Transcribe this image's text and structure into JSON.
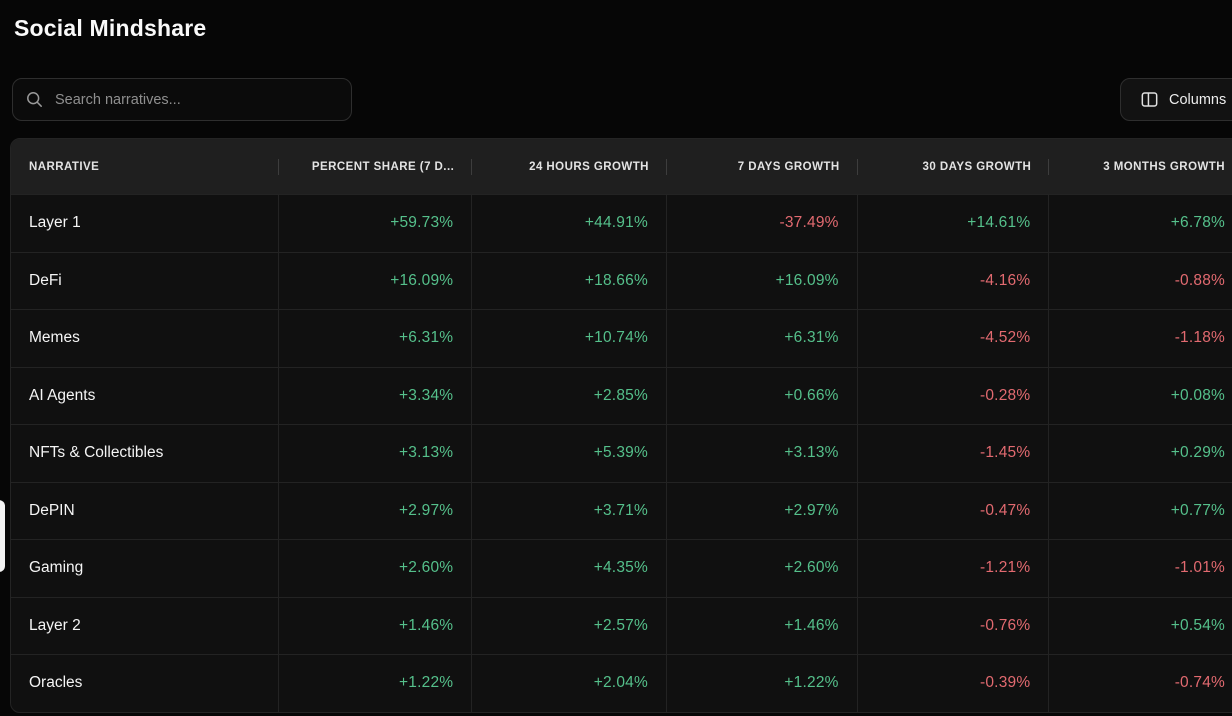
{
  "page": {
    "title": "Social Mindshare"
  },
  "toolbar": {
    "search_placeholder": "Search narratives...",
    "search_value": "",
    "search_icon": "magnifier",
    "columns_label": "Columns",
    "columns_icon": "columns-layout"
  },
  "colors": {
    "positive": "#55c08b",
    "negative": "#e26a70"
  },
  "table": {
    "columns": [
      {
        "key": "narrative",
        "label": "NARRATIVE"
      },
      {
        "key": "percent_share_7d",
        "label": "PERCENT SHARE (7 D..."
      },
      {
        "key": "growth_24h",
        "label": "24 HOURS GROWTH"
      },
      {
        "key": "growth_7d",
        "label": "7 DAYS GROWTH"
      },
      {
        "key": "growth_30d",
        "label": "30 DAYS GROWTH"
      },
      {
        "key": "growth_3m",
        "label": "3 MONTHS GROWTH"
      }
    ],
    "rows": [
      {
        "narrative": "Layer 1",
        "values": [
          "+59.73%",
          "+44.91%",
          "-37.49%",
          "+14.61%",
          "+6.78%"
        ]
      },
      {
        "narrative": "DeFi",
        "values": [
          "+16.09%",
          "+18.66%",
          "+16.09%",
          "-4.16%",
          "-0.88%"
        ]
      },
      {
        "narrative": "Memes",
        "values": [
          "+6.31%",
          "+10.74%",
          "+6.31%",
          "-4.52%",
          "-1.18%"
        ]
      },
      {
        "narrative": "AI Agents",
        "values": [
          "+3.34%",
          "+2.85%",
          "+0.66%",
          "-0.28%",
          "+0.08%"
        ]
      },
      {
        "narrative": "NFTs & Collectibles",
        "values": [
          "+3.13%",
          "+5.39%",
          "+3.13%",
          "-1.45%",
          "+0.29%"
        ]
      },
      {
        "narrative": "DePIN",
        "values": [
          "+2.97%",
          "+3.71%",
          "+2.97%",
          "-0.47%",
          "+0.77%"
        ]
      },
      {
        "narrative": "Gaming",
        "values": [
          "+2.60%",
          "+4.35%",
          "+2.60%",
          "-1.21%",
          "-1.01%"
        ]
      },
      {
        "narrative": "Layer 2",
        "values": [
          "+1.46%",
          "+2.57%",
          "+1.46%",
          "-0.76%",
          "+0.54%"
        ]
      },
      {
        "narrative": "Oracles",
        "values": [
          "+1.22%",
          "+2.04%",
          "+1.22%",
          "-0.39%",
          "-0.74%"
        ]
      }
    ]
  }
}
